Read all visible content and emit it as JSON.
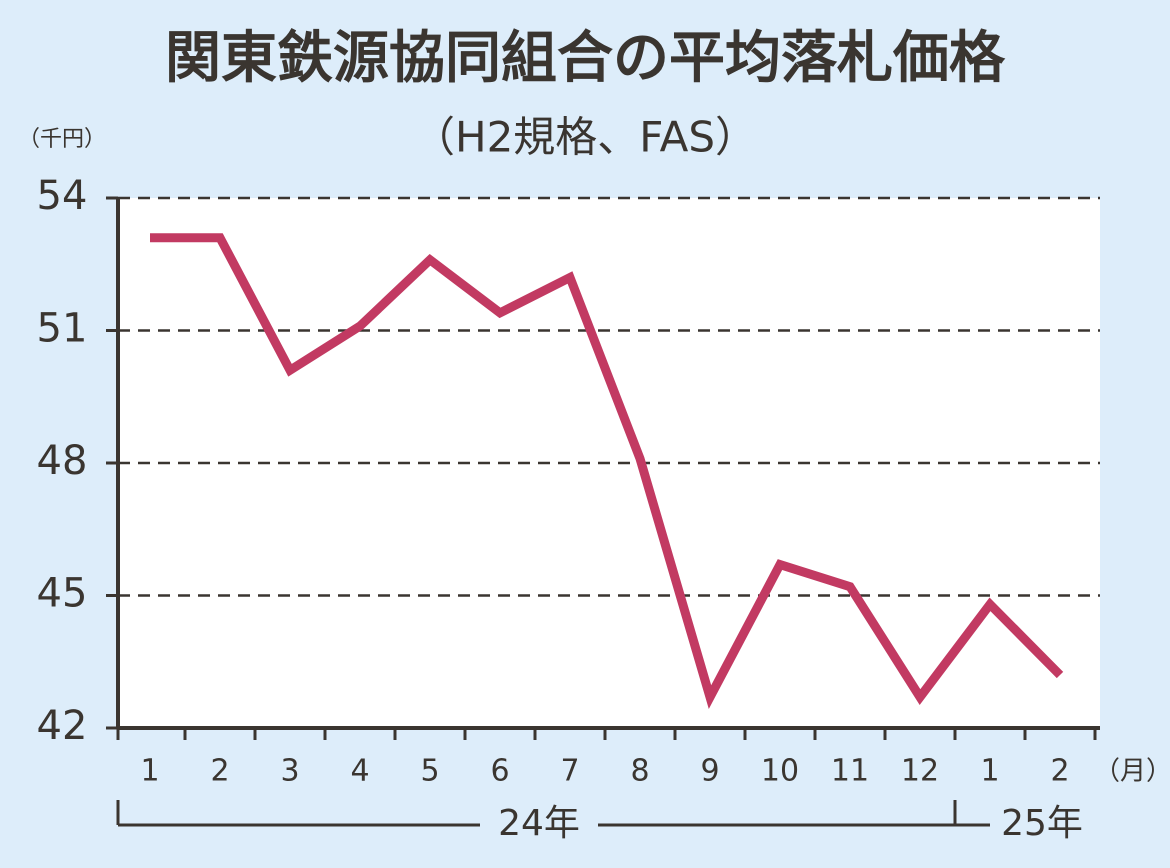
{
  "chart_data": {
    "type": "line",
    "title": "関東鉄源協同組合の平均落札価格",
    "subtitle": "（H2規格、FAS）",
    "y_unit": "（千円）",
    "x_unit": "（月）",
    "categories": [
      "1",
      "2",
      "3",
      "4",
      "5",
      "6",
      "7",
      "8",
      "9",
      "10",
      "11",
      "12",
      "1",
      "2"
    ],
    "year_labels": [
      "24年",
      "25年"
    ],
    "values": [
      53.1,
      53.1,
      50.1,
      51.1,
      52.6,
      51.4,
      52.2,
      48.1,
      42.7,
      45.7,
      45.2,
      42.7,
      44.8,
      43.2
    ],
    "color": "#c23a62",
    "ylim": [
      42,
      54
    ],
    "yticks": [
      42,
      45,
      48,
      51,
      54
    ],
    "grid": true
  }
}
